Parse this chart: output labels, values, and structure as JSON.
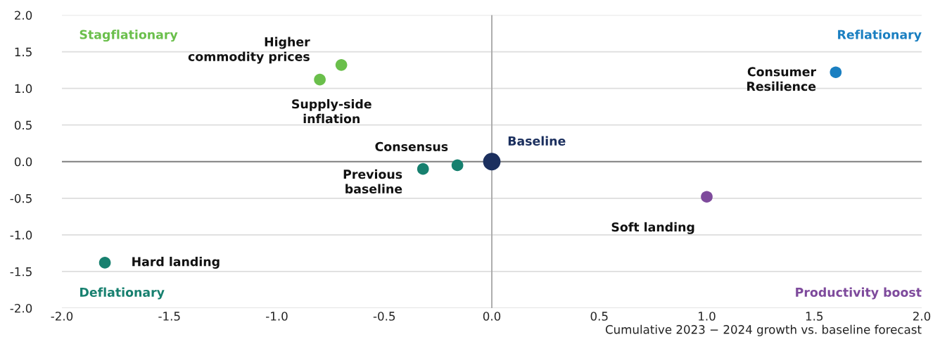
{
  "chart_data": {
    "type": "scatter",
    "xlabel": "Cumulative 2023 − 2024 growth vs. baseline forecast",
    "xlim": [
      -2.0,
      2.0
    ],
    "ylim": [
      -2.0,
      2.0
    ],
    "xticks": [
      {
        "value": -2,
        "label": "-2.0"
      },
      {
        "value": -1.5,
        "label": "-1.5"
      },
      {
        "value": -1,
        "label": "-1.0"
      },
      {
        "value": -0.5,
        "label": "-0.5"
      },
      {
        "value": 0,
        "label": "0.0"
      },
      {
        "value": 0.5,
        "label": "0.5"
      },
      {
        "value": 1,
        "label": "1.0"
      },
      {
        "value": 1.5,
        "label": "1.5"
      },
      {
        "value": 2,
        "label": "2.0"
      }
    ],
    "yticks": [
      {
        "value": -2,
        "label": "-2.0"
      },
      {
        "value": -1.5,
        "label": "-1.5"
      },
      {
        "value": -1,
        "label": "-1.0"
      },
      {
        "value": -0.5,
        "label": "-0.5"
      },
      {
        "value": 0,
        "label": "0.0"
      },
      {
        "value": 0.5,
        "label": "0.5"
      },
      {
        "value": 1,
        "label": "1.0"
      },
      {
        "value": 1.5,
        "label": "1.5"
      },
      {
        "value": 2,
        "label": "2.0"
      }
    ],
    "grid": "y",
    "marker": "circle",
    "ref_lines": [
      {
        "axis": "x",
        "value": 0,
        "color": "#a6a6a6"
      },
      {
        "axis": "y",
        "value": 0,
        "color": "#808080"
      }
    ],
    "series": [
      {
        "name": "Stagflationary",
        "color": "#6abf4b",
        "x": [
          -0.7,
          -0.8
        ],
        "values": [
          1.32,
          1.12
        ],
        "sizes": [
          0.45,
          0.45
        ]
      },
      {
        "name": "Reflationary",
        "color": "#1a7fc1",
        "x": [
          1.6
        ],
        "values": [
          1.22
        ],
        "sizes": [
          0.45
        ]
      },
      {
        "name": "Deflationary",
        "color": "#17806f",
        "x": [
          -1.8,
          -0.16,
          -0.32
        ],
        "values": [
          -1.38,
          -0.05,
          -0.1
        ],
        "sizes": [
          0.45,
          0.45,
          0.45
        ]
      },
      {
        "name": "Productivity boost",
        "color": "#7e4a9c",
        "x": [
          1.0
        ],
        "values": [
          -0.48
        ],
        "sizes": [
          0.45
        ]
      },
      {
        "name": "Baseline",
        "color": "#1b2f5e",
        "x": [
          0
        ],
        "values": [
          0
        ],
        "sizes": [
          1
        ]
      }
    ],
    "annotations": [
      {
        "text": "Higher\ncommodity prices",
        "x": -0.7,
        "y": 1.32
      },
      {
        "text": "Supply-side\ninflation",
        "x": -0.8,
        "y": 1.12
      },
      {
        "text": "Consumer\nResilience",
        "x": 1.6,
        "y": 1.22
      },
      {
        "text": "Hard landing",
        "x": -1.8,
        "y": -1.38
      },
      {
        "text": "Consensus",
        "x": -0.16,
        "y": -0.05
      },
      {
        "text": "Previous\nbaseline",
        "x": -0.32,
        "y": -0.1
      },
      {
        "text": "Soft landing",
        "x": 1.0,
        "y": -0.48
      }
    ]
  }
}
